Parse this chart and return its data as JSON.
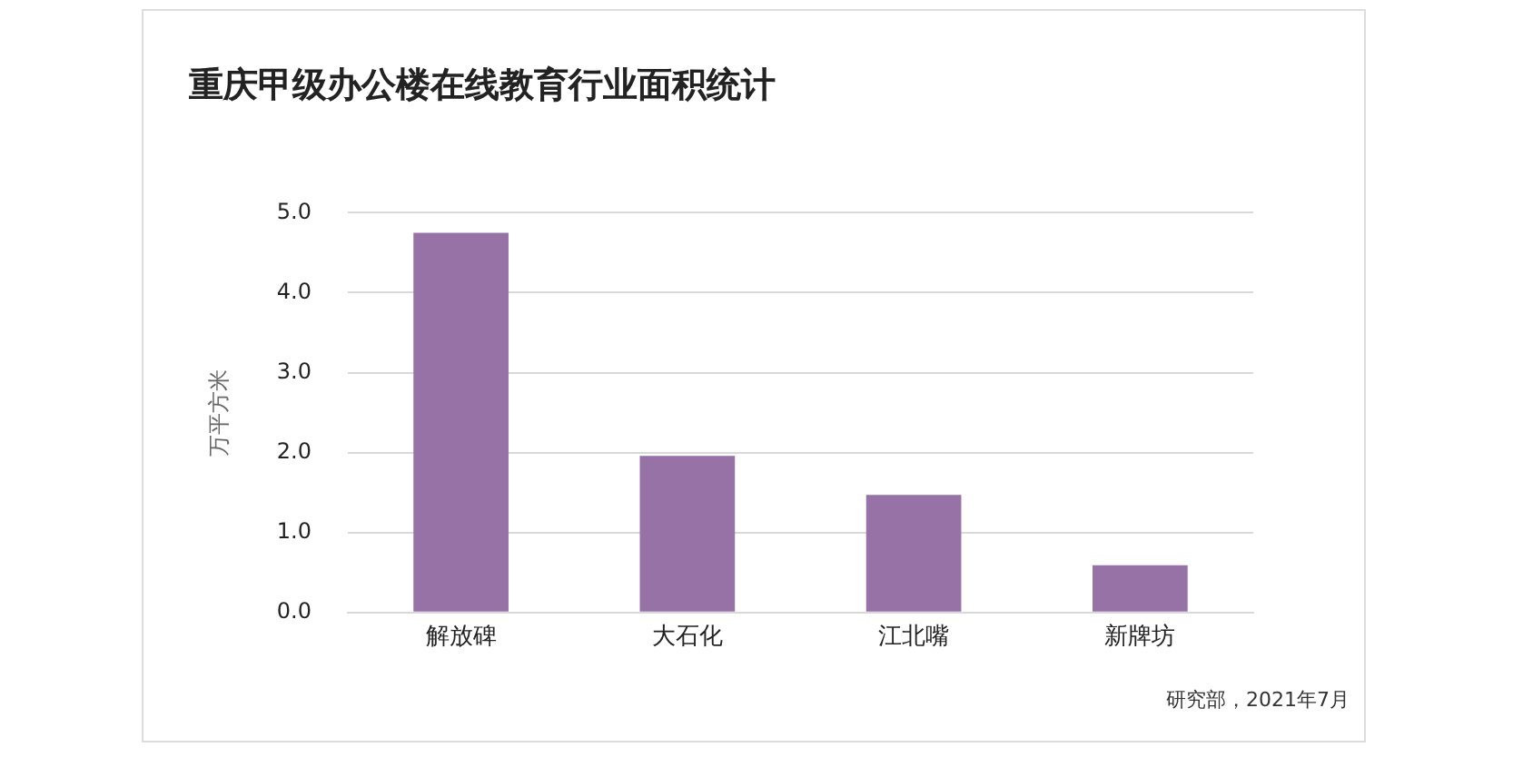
{
  "chart_data": {
    "type": "bar",
    "title": "重庆甲级办公楼在线教育行业面积统计",
    "ylabel": "万平方米",
    "categories": [
      "解放碑",
      "大石化",
      "江北嘴",
      "新牌坊"
    ],
    "values": [
      4.75,
      1.96,
      1.47,
      0.59
    ],
    "color": "#9672a7",
    "ylim": [
      0,
      5
    ],
    "yticks": [
      {
        "value": 0,
        "label": "0.0"
      },
      {
        "value": 1,
        "label": "1.0"
      },
      {
        "value": 2,
        "label": "2.0"
      },
      {
        "value": 3,
        "label": "3.0"
      },
      {
        "value": 4,
        "label": "4.0"
      },
      {
        "value": 5,
        "label": "5.0"
      }
    ],
    "grid": "y",
    "legend": false,
    "annotations": [
      "研究部，2021年7月"
    ]
  }
}
